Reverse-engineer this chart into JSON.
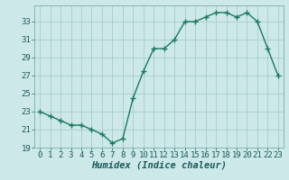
{
  "x": [
    0,
    1,
    2,
    3,
    4,
    5,
    6,
    7,
    8,
    9,
    10,
    11,
    12,
    13,
    14,
    15,
    16,
    17,
    18,
    19,
    20,
    21,
    22,
    23
  ],
  "y": [
    23,
    22.5,
    22,
    21.5,
    21.5,
    21,
    20.5,
    19.5,
    20,
    24.5,
    27.5,
    30,
    30,
    31,
    33,
    33,
    33.5,
    34,
    34,
    33.5,
    34,
    33,
    30,
    27
  ],
  "line_color": "#1a7a5e",
  "marker_color": "#1a7a5e",
  "bg_color": "#cce8e8",
  "grid_color": "#aacccc",
  "xlabel": "Humidex (Indice chaleur)",
  "xlim": [
    -0.5,
    23.5
  ],
  "ylim": [
    19,
    34.8
  ],
  "yticks": [
    19,
    21,
    23,
    25,
    27,
    29,
    31,
    33
  ],
  "xticks": [
    0,
    1,
    2,
    3,
    4,
    5,
    6,
    7,
    8,
    9,
    10,
    11,
    12,
    13,
    14,
    15,
    16,
    17,
    18,
    19,
    20,
    21,
    22,
    23
  ],
  "xlabel_fontsize": 7.5,
  "tick_fontsize": 6.5,
  "line_width": 1.0,
  "marker_size": 2.5
}
